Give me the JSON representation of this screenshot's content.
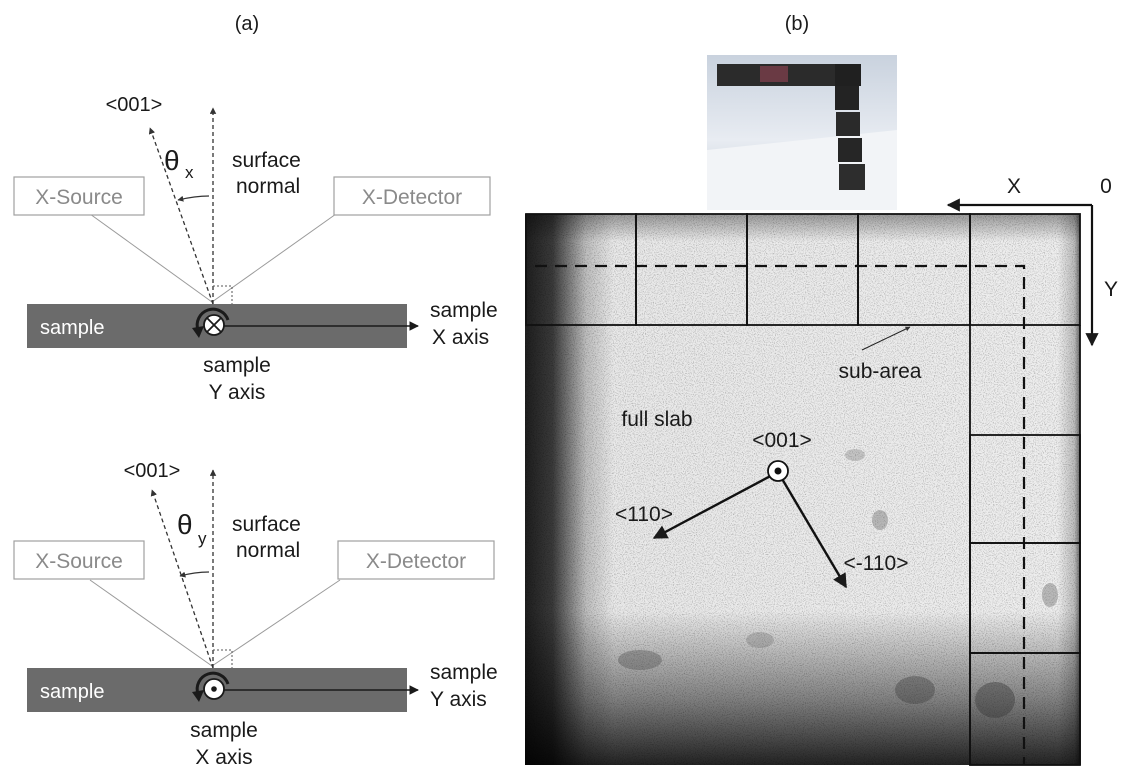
{
  "panel_a": {
    "label": "(a)",
    "top": {
      "axis_label": "<001>",
      "angle_symbol": "θ",
      "angle_subscript": "x",
      "normal_line1": "surface",
      "normal_line2": "normal",
      "source_label": "X-Source",
      "detector_label": "X-Detector",
      "sample_label": "sample",
      "right_axis_line1": "sample",
      "right_axis_line2": "X axis",
      "below_axis_line1": "sample",
      "below_axis_line2": "Y axis",
      "rotation_icon": "into-page-cross-icon"
    },
    "bottom": {
      "axis_label": "<001>",
      "angle_symbol": "θ",
      "angle_subscript": "y",
      "normal_line1": "surface",
      "normal_line2": "normal",
      "source_label": "X-Source",
      "detector_label": "X-Detector",
      "sample_label": "sample",
      "right_axis_line1": "sample",
      "right_axis_line2": "Y axis",
      "below_axis_line1": "sample",
      "below_axis_line2": "X axis",
      "rotation_icon": "out-of-page-dot-icon"
    }
  },
  "panel_b": {
    "label": "(b)",
    "axis_x": "X",
    "axis_y": "Y",
    "origin": "0",
    "sub_area_label": "sub-area",
    "full_slab_label": "full slab",
    "dir_001": "<001>",
    "dir_110": "<110>",
    "dir_m110": "<-110>"
  },
  "colors": {
    "sample_bar": "#6b6b6b",
    "box_border": "#a0a0a0",
    "slab_light": "#ececec",
    "slab_dark": "#1e1e1e"
  }
}
